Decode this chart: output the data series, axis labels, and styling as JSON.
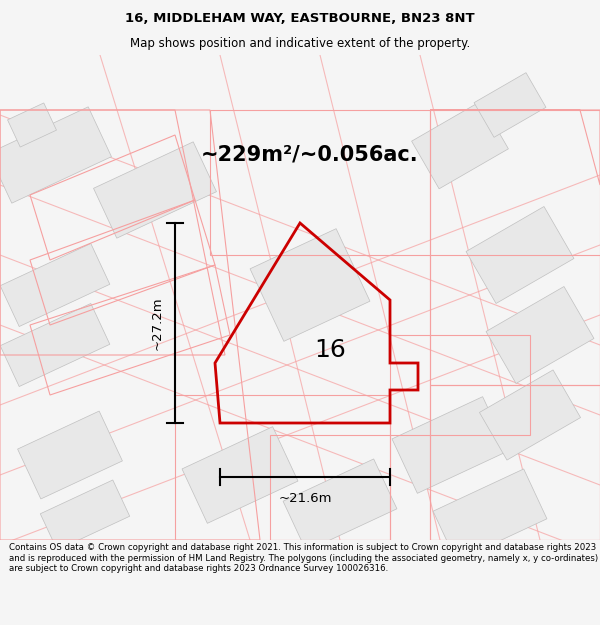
{
  "title_line1": "16, MIDDLEHAM WAY, EASTBOURNE, BN23 8NT",
  "title_line2": "Map shows position and indicative extent of the property.",
  "area_label": "~229m²/~0.056ac.",
  "property_number": "16",
  "width_label": "~21.6m",
  "height_label": "~27.2m",
  "footer_text": "Contains OS data © Crown copyright and database right 2021. This information is subject to Crown copyright and database rights 2023 and is reproduced with the permission of HM Land Registry. The polygons (including the associated geometry, namely x, y co-ordinates) are subject to Crown copyright and database rights 2023 Ordnance Survey 100026316.",
  "bg_color": "#f5f5f5",
  "map_bg_color": "#ffffff",
  "plot_color": "#cc0000",
  "plot_fill": "none",
  "surr_edge_color": "#f5a0a0",
  "surr_fill_color": "#e8e8e8",
  "road_color": "#f5a0a0"
}
